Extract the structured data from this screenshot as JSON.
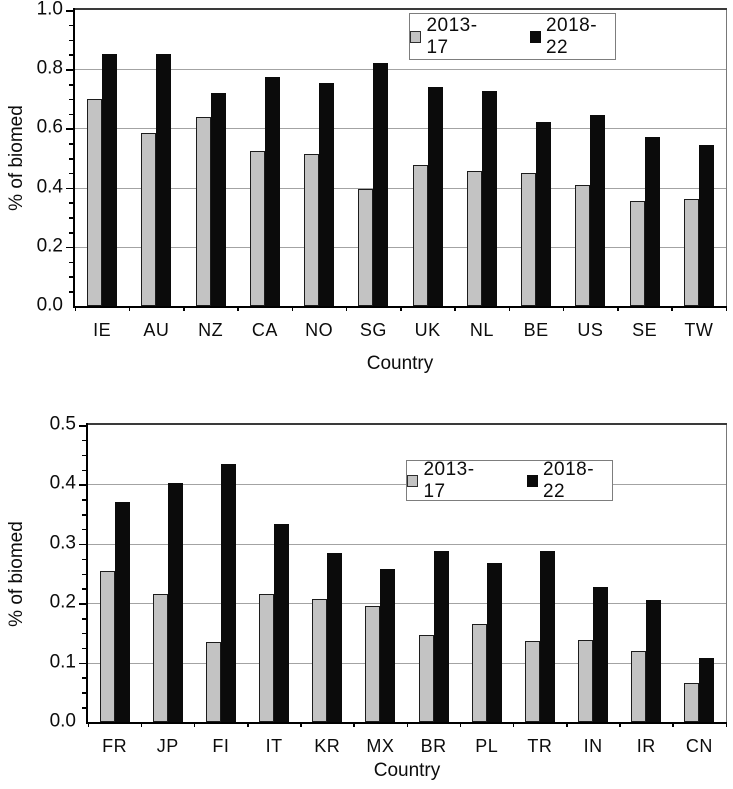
{
  "chart_data": [
    {
      "type": "bar",
      "title": "",
      "categories": [
        "IE",
        "AU",
        "NZ",
        "CA",
        "NO",
        "SG",
        "UK",
        "NL",
        "BE",
        "US",
        "SE",
        "TW"
      ],
      "series": [
        {
          "name": "2013-17",
          "color": "#c3c3c3",
          "values": [
            0.7,
            0.585,
            0.64,
            0.525,
            0.515,
            0.395,
            0.475,
            0.455,
            0.45,
            0.41,
            0.355,
            0.36
          ]
        },
        {
          "name": "2018-22",
          "color": "#0b0b0b",
          "values": [
            0.85,
            0.85,
            0.72,
            0.775,
            0.755,
            0.82,
            0.74,
            0.725,
            0.62,
            0.645,
            0.57,
            0.545
          ]
        }
      ],
      "xlabel": "Country",
      "ylabel": "% of biomed",
      "ylim": [
        0,
        1.0
      ],
      "major_tick": 0.2,
      "minor_tick": 0.05,
      "yticks": [
        "1.0",
        "0.8",
        "0.6",
        "0.4",
        "0.2",
        "0.0"
      ],
      "grid": true,
      "legend_position": "top-center",
      "legend_labels": [
        "2013-17",
        "2018-22"
      ]
    },
    {
      "type": "bar",
      "title": "",
      "categories": [
        "FR",
        "JP",
        "FI",
        "IT",
        "KR",
        "MX",
        "BR",
        "PL",
        "TR",
        "IN",
        "IR",
        "CN"
      ],
      "series": [
        {
          "name": "2013-17",
          "color": "#c3c3c3",
          "values": [
            0.255,
            0.215,
            0.135,
            0.215,
            0.207,
            0.196,
            0.147,
            0.165,
            0.137,
            0.138,
            0.12,
            0.065
          ]
        },
        {
          "name": "2018-22",
          "color": "#0b0b0b",
          "values": [
            0.37,
            0.403,
            0.435,
            0.333,
            0.284,
            0.257,
            0.288,
            0.268,
            0.288,
            0.228,
            0.205,
            0.107
          ]
        }
      ],
      "xlabel": "Country",
      "ylabel": "% of biomed",
      "ylim": [
        0,
        0.5
      ],
      "major_tick": 0.1,
      "minor_tick": 0.025,
      "yticks": [
        "0.5",
        "0.4",
        "0.3",
        "0.2",
        "0.1",
        "0.0"
      ],
      "grid": true,
      "legend_position": "top-center",
      "legend_labels": [
        "2013-17",
        "2018-22"
      ]
    }
  ],
  "colors": {
    "bar_gray": "#c3c3c3",
    "bar_black": "#0b0b0b",
    "gridline": "#a3a3a3",
    "axis": "#000000"
  }
}
